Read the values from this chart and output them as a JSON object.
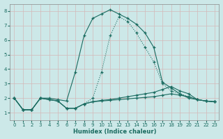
{
  "xlabel": "Humidex (Indice chaleur)",
  "bg_color": "#cce8e8",
  "grid_color": "#b8d8d8",
  "line_color": "#1a6b60",
  "xlim": [
    -0.5,
    23.5
  ],
  "ylim": [
    0.5,
    8.5
  ],
  "xticks": [
    0,
    1,
    2,
    3,
    4,
    5,
    6,
    7,
    8,
    9,
    10,
    11,
    12,
    13,
    14,
    15,
    16,
    17,
    18,
    19,
    20,
    21,
    22,
    23
  ],
  "yticks": [
    1,
    2,
    3,
    4,
    5,
    6,
    7,
    8
  ],
  "lines": [
    {
      "style": "solid",
      "x": [
        0,
        1,
        2,
        3,
        4,
        5,
        6,
        7,
        8,
        9,
        10,
        11,
        12,
        13,
        14,
        15,
        16,
        17,
        18,
        19,
        20,
        21,
        22,
        23
      ],
      "y": [
        2.0,
        1.2,
        1.2,
        2.0,
        2.0,
        1.9,
        1.8,
        3.8,
        6.3,
        7.5,
        7.8,
        8.1,
        7.8,
        7.5,
        7.1,
        6.5,
        5.5,
        3.1,
        2.7,
        2.3,
        2.0,
        1.9,
        1.8,
        1.75
      ]
    },
    {
      "style": "dotted",
      "x": [
        0,
        1,
        2,
        3,
        4,
        5,
        6,
        7,
        8,
        9,
        10,
        11,
        12,
        13,
        14,
        15,
        16,
        17,
        18,
        19,
        20,
        21,
        22,
        23
      ],
      "y": [
        2.0,
        1.2,
        1.2,
        2.0,
        1.9,
        1.8,
        1.3,
        1.3,
        1.6,
        2.0,
        3.8,
        6.3,
        7.6,
        7.3,
        6.5,
        5.5,
        4.5,
        3.0,
        2.5,
        2.3,
        2.1,
        1.9,
        1.8,
        1.75
      ]
    },
    {
      "style": "solid",
      "x": [
        0,
        1,
        2,
        3,
        4,
        5,
        6,
        7,
        8,
        9,
        10,
        11,
        12,
        13,
        14,
        15,
        16,
        17,
        18,
        19,
        20,
        21,
        22,
        23
      ],
      "y": [
        2.0,
        1.2,
        1.2,
        2.0,
        1.9,
        1.8,
        1.3,
        1.3,
        1.6,
        1.75,
        1.85,
        1.9,
        2.0,
        2.1,
        2.2,
        2.3,
        2.4,
        2.6,
        2.8,
        2.5,
        2.3,
        1.9,
        1.8,
        1.75
      ]
    },
    {
      "style": "solid",
      "x": [
        0,
        1,
        2,
        3,
        4,
        5,
        6,
        7,
        8,
        9,
        10,
        11,
        12,
        13,
        14,
        15,
        16,
        17,
        18,
        19,
        20,
        21,
        22,
        23
      ],
      "y": [
        2.0,
        1.2,
        1.2,
        2.0,
        1.9,
        1.8,
        1.3,
        1.3,
        1.6,
        1.75,
        1.8,
        1.85,
        1.9,
        1.95,
        2.0,
        2.05,
        2.1,
        2.2,
        2.3,
        2.2,
        2.1,
        1.9,
        1.8,
        1.75
      ]
    }
  ]
}
